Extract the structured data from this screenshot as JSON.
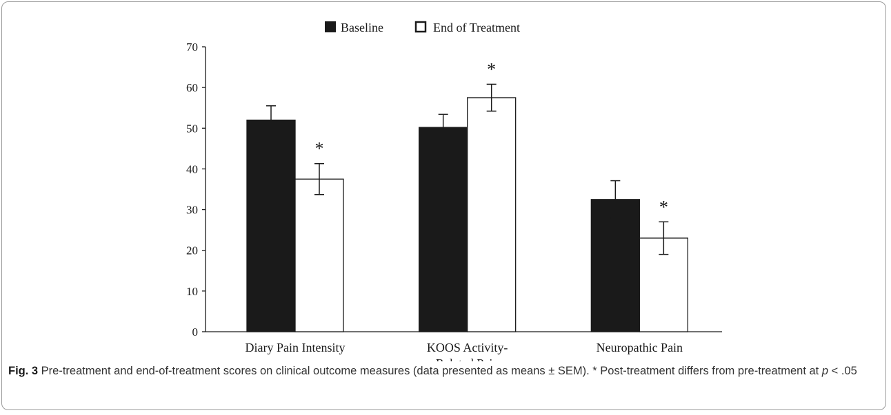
{
  "chart_data": {
    "type": "bar",
    "categories": [
      "Diary Pain Intensity",
      "KOOS Activity-Related Pain",
      "Neuropathic Pain"
    ],
    "category_label_lines": [
      [
        "Diary Pain Intensity"
      ],
      [
        "KOOS Activity-",
        "Related Pain"
      ],
      [
        "Neuropathic Pain"
      ]
    ],
    "series": [
      {
        "name": "Baseline",
        "values": [
          52,
          50.2,
          32.5
        ],
        "sem": [
          3.5,
          3.2,
          4.6
        ],
        "color": "#1a1a1a"
      },
      {
        "name": "End of Treatment",
        "values": [
          37.5,
          57.5,
          23
        ],
        "sem": [
          3.8,
          3.3,
          4.0
        ],
        "color": "#ffffff"
      }
    ],
    "significance": [
      false,
      false,
      false,
      true,
      true,
      true
    ],
    "significance_marker": "*",
    "ylim": [
      0,
      70
    ],
    "yticks": [
      "0",
      "10",
      "20",
      "30",
      "40",
      "50",
      "60",
      "70"
    ],
    "grid": false,
    "legend_position": "top-center",
    "title": "",
    "xlabel": "",
    "ylabel": ""
  },
  "caption": {
    "label": "Fig. 3",
    "text_before": " Pre-treatment and end-of-treatment scores on clinical outcome measures (data presented as means ± SEM). * Post-treatment differs from pre-treatment at ",
    "p_symbol": "p",
    "text_after": " < .05"
  }
}
